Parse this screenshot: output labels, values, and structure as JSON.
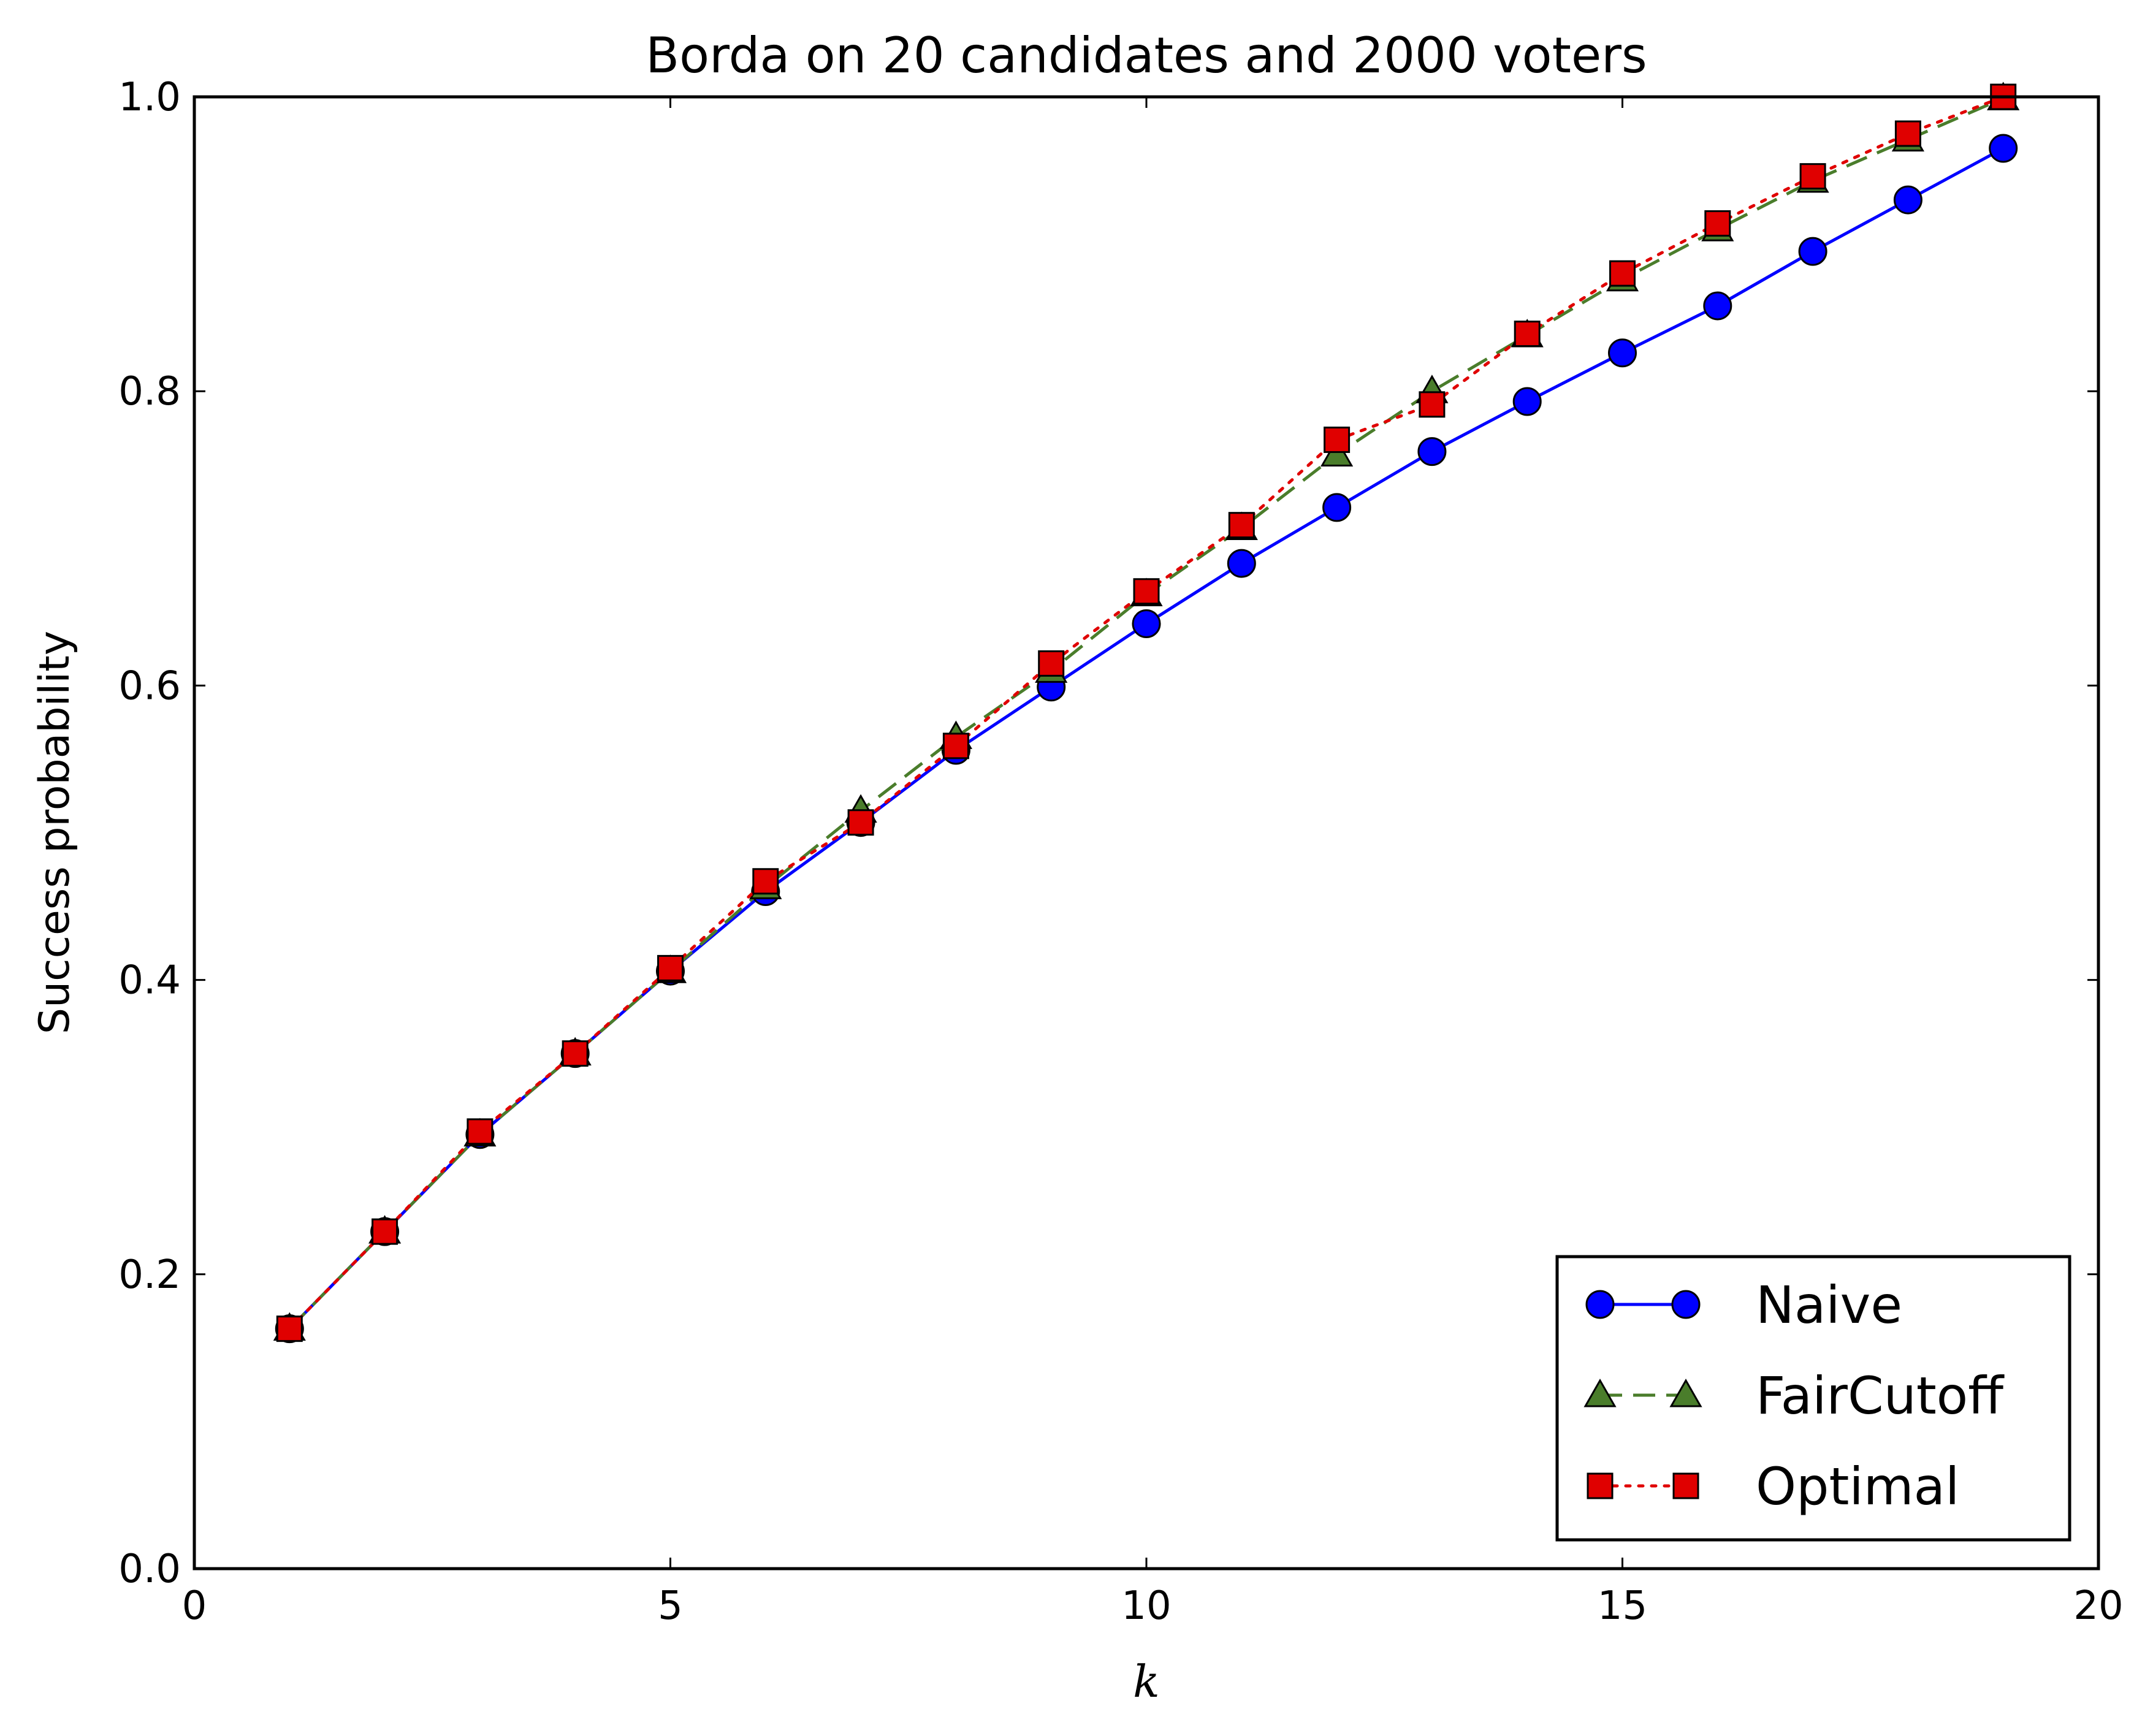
{
  "chart_data": {
    "type": "line",
    "title": "Borda on 20 candidates and 2000 voters",
    "xlabel": "k",
    "ylabel": "Success probability",
    "xlim": [
      0,
      20
    ],
    "ylim": [
      0.0,
      1.0
    ],
    "xticks": [
      "0",
      "5",
      "10",
      "15",
      "20"
    ],
    "yticks": [
      "0.0",
      "0.2",
      "0.4",
      "0.6",
      "0.8",
      "1.0"
    ],
    "grid": false,
    "legend_position": "lower right",
    "x": [
      1,
      2,
      3,
      4,
      5,
      6,
      7,
      8,
      9,
      10,
      11,
      12,
      13,
      14,
      15,
      16,
      17,
      18,
      19
    ],
    "series": [
      {
        "name": "Naive",
        "color": "#0000ff",
        "marker": "circle",
        "linestyle": "solid",
        "values": [
          0.163,
          0.229,
          0.295,
          0.35,
          0.406,
          0.46,
          0.507,
          0.556,
          0.599,
          0.642,
          0.683,
          0.721,
          0.759,
          0.793,
          0.826,
          0.858,
          0.895,
          0.93,
          0.965
        ]
      },
      {
        "name": "FairCutoff",
        "color": "#4a7d2b",
        "marker": "triangle",
        "linestyle": "dashed",
        "values": [
          0.163,
          0.229,
          0.295,
          0.35,
          0.406,
          0.463,
          0.515,
          0.565,
          0.61,
          0.662,
          0.707,
          0.757,
          0.8,
          0.838,
          0.876,
          0.91,
          0.943,
          0.971,
          0.999
        ]
      },
      {
        "name": "Optimal",
        "color": "#e00000",
        "marker": "square",
        "linestyle": "dotted",
        "values": [
          0.163,
          0.229,
          0.297,
          0.35,
          0.408,
          0.467,
          0.507,
          0.559,
          0.615,
          0.664,
          0.709,
          0.767,
          0.791,
          0.839,
          0.88,
          0.914,
          0.946,
          0.975,
          1.0
        ]
      }
    ]
  }
}
